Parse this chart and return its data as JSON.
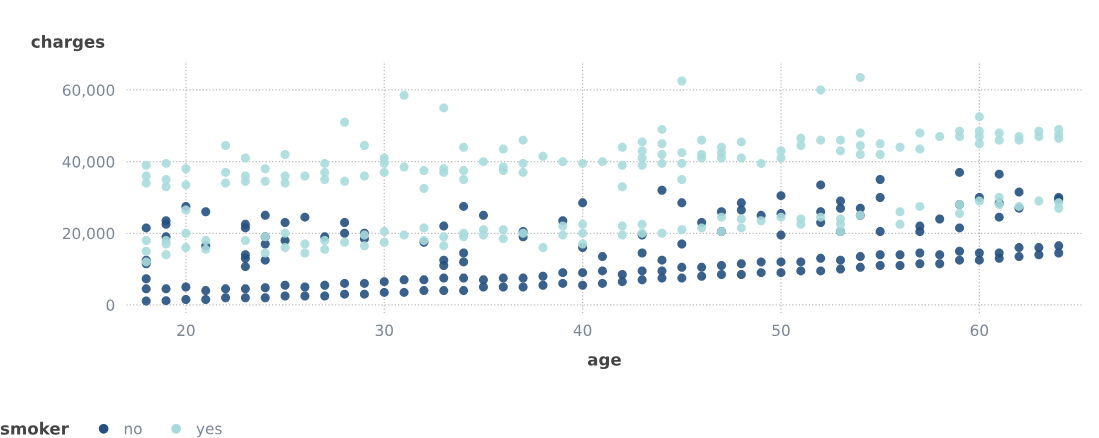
{
  "chart_data": {
    "type": "scatter",
    "xlabel": "age",
    "ylabel": "charges",
    "legend_title": "smoker",
    "legend": "bottom",
    "grid": true,
    "marker": "circle",
    "xlim": [
      17,
      65.2
    ],
    "ylim": [
      -2300,
      68000
    ],
    "xticks": [
      20,
      30,
      40,
      50,
      60
    ],
    "yticks": [
      {
        "value": 0,
        "label": "0"
      },
      {
        "value": 20000,
        "label": "20,000"
      },
      {
        "value": 40000,
        "label": "40,000"
      },
      {
        "value": 60000,
        "label": "60,000"
      }
    ],
    "series": [
      {
        "name": "no",
        "color": "#23507e",
        "x": [
          18,
          18,
          18,
          18,
          18,
          18,
          19,
          19,
          19,
          19,
          19,
          20,
          20,
          20,
          21,
          21,
          21,
          21,
          22,
          22,
          23,
          23,
          23,
          23,
          23,
          23,
          23,
          24,
          24,
          24,
          24,
          24,
          24,
          25,
          25,
          25,
          25,
          26,
          26,
          26,
          27,
          27,
          27,
          28,
          28,
          28,
          28,
          29,
          29,
          29,
          29,
          30,
          30,
          31,
          31,
          32,
          32,
          32,
          33,
          33,
          33,
          33,
          33,
          34,
          34,
          34,
          34,
          34,
          35,
          35,
          35,
          36,
          36,
          37,
          37,
          37,
          37,
          38,
          38,
          39,
          39,
          39,
          40,
          40,
          40,
          40,
          41,
          41,
          41,
          42,
          42,
          43,
          43,
          43,
          43,
          44,
          44,
          44,
          44,
          45,
          45,
          45,
          45,
          46,
          46,
          46,
          47,
          47,
          47,
          47,
          48,
          48,
          48,
          48,
          49,
          49,
          49,
          50,
          50,
          50,
          50,
          50,
          51,
          51,
          52,
          52,
          52,
          52,
          52,
          53,
          53,
          53,
          53,
          53,
          54,
          54,
          54,
          54,
          55,
          55,
          55,
          55,
          55,
          56,
          56,
          57,
          57,
          57,
          57,
          58,
          58,
          58,
          59,
          59,
          59,
          59,
          59,
          60,
          60,
          60,
          61,
          61,
          61,
          61,
          61,
          62,
          62,
          62,
          62,
          63,
          63,
          64,
          64,
          64,
          64
        ],
        "values": [
          1100,
          4500,
          7300,
          11500,
          12500,
          21500,
          1200,
          4500,
          19000,
          22500,
          23500,
          1500,
          5000,
          27500,
          1500,
          4000,
          16500,
          26000,
          2000,
          4500,
          2000,
          4500,
          10700,
          13000,
          14000,
          21500,
          22500,
          2000,
          4800,
          12500,
          17000,
          19000,
          25000,
          2500,
          5500,
          18000,
          23000,
          2500,
          5000,
          24500,
          2500,
          5500,
          19000,
          3000,
          6000,
          20000,
          23000,
          3000,
          6000,
          18500,
          20000,
          3500,
          6500,
          3500,
          7000,
          4000,
          7000,
          17500,
          4000,
          7500,
          11000,
          12500,
          22000,
          4000,
          7500,
          12000,
          14500,
          27500,
          5000,
          7000,
          25000,
          5000,
          7500,
          5000,
          7500,
          19000,
          20500,
          5500,
          8000,
          6000,
          9000,
          23500,
          5500,
          9000,
          16000,
          28500,
          6000,
          9500,
          13500,
          6500,
          8500,
          7000,
          9500,
          14500,
          19500,
          7500,
          9500,
          12500,
          32000,
          7500,
          10500,
          17000,
          28500,
          8000,
          10500,
          23000,
          8500,
          11000,
          20500,
          26000,
          8500,
          11500,
          26500,
          28500,
          9000,
          12000,
          25000,
          9000,
          12000,
          19500,
          25500,
          30500,
          9500,
          12000,
          9500,
          13000,
          23000,
          26000,
          33500,
          10000,
          12500,
          20500,
          27000,
          29000,
          10500,
          13500,
          25000,
          27000,
          11000,
          14000,
          20500,
          30000,
          35000,
          11000,
          14000,
          11500,
          14500,
          20500,
          22000,
          11500,
          14000,
          24000,
          12500,
          15000,
          21500,
          28000,
          37000,
          12500,
          14500,
          30000,
          13000,
          14500,
          24500,
          28500,
          36500,
          13500,
          16000,
          27000,
          31500,
          14000,
          16000,
          14500,
          16500,
          29500,
          30000
        ]
      },
      {
        "name": "yes",
        "color": "#a8dadc",
        "x": [
          18,
          18,
          18,
          18,
          18,
          18,
          19,
          19,
          19,
          19,
          19,
          19,
          20,
          20,
          20,
          20,
          20,
          21,
          21,
          22,
          22,
          22,
          23,
          23,
          23,
          23,
          24,
          24,
          24,
          24,
          25,
          25,
          25,
          25,
          25,
          26,
          26,
          26,
          27,
          27,
          27,
          27,
          27,
          28,
          28,
          28,
          29,
          29,
          29,
          29,
          30,
          30,
          30,
          30,
          30,
          31,
          31,
          31,
          32,
          32,
          32,
          32,
          33,
          33,
          33,
          33,
          33,
          34,
          34,
          34,
          34,
          34,
          35,
          35,
          35,
          36,
          36,
          36,
          36,
          36,
          37,
          37,
          37,
          37,
          38,
          38,
          39,
          39,
          39,
          40,
          40,
          40,
          40,
          41,
          42,
          42,
          42,
          42,
          42,
          43,
          43,
          43,
          43,
          43,
          43,
          44,
          44,
          44,
          44,
          44,
          45,
          45,
          45,
          45,
          45,
          46,
          46,
          46,
          46,
          47,
          47,
          47,
          47,
          47,
          48,
          48,
          48,
          48,
          49,
          49,
          50,
          50,
          50,
          51,
          51,
          51,
          51,
          52,
          52,
          52,
          53,
          53,
          53,
          53,
          53,
          54,
          54,
          54,
          54,
          54,
          55,
          55,
          56,
          56,
          56,
          57,
          57,
          57,
          58,
          59,
          59,
          59,
          59,
          60,
          60,
          60,
          60,
          60,
          61,
          61,
          61,
          61,
          62,
          62,
          62,
          63,
          63,
          63,
          64,
          64,
          64,
          64,
          64
        ],
        "values": [
          34000,
          36000,
          39000,
          12000,
          15000,
          18000,
          33000,
          35000,
          39500,
          14000,
          17000,
          18000,
          33500,
          38000,
          26500,
          20000,
          16000,
          15500,
          18000,
          34000,
          37000,
          44500,
          34500,
          36000,
          41000,
          18000,
          34500,
          38000,
          14500,
          19000,
          34000,
          36000,
          42000,
          16000,
          20000,
          36000,
          14500,
          17000,
          35000,
          37000,
          39500,
          15500,
          18000,
          34500,
          51000,
          17500,
          36000,
          44500,
          16500,
          19500,
          37000,
          39500,
          41000,
          17500,
          20500,
          38500,
          58500,
          19500,
          32500,
          37500,
          18000,
          21500,
          37000,
          38000,
          55000,
          16500,
          19000,
          35000,
          37500,
          44000,
          19000,
          20000,
          40000,
          19500,
          21000,
          37500,
          38500,
          43500,
          18500,
          21000,
          37000,
          39500,
          46000,
          20000,
          41500,
          16000,
          40000,
          19500,
          22000,
          39500,
          17000,
          20000,
          22500,
          40000,
          33000,
          39000,
          44000,
          19500,
          22000,
          39000,
          41000,
          43000,
          45500,
          20000,
          22500,
          39500,
          42000,
          45000,
          49000,
          20000,
          35000,
          39500,
          42500,
          62500,
          21000,
          41000,
          42000,
          46000,
          21500,
          41000,
          42500,
          44000,
          20500,
          24500,
          41000,
          45500,
          21500,
          24000,
          39500,
          23500,
          41000,
          43000,
          24500,
          44500,
          46500,
          22500,
          24000,
          46000,
          60000,
          24500,
          43000,
          46000,
          20500,
          22500,
          24000,
          42000,
          44500,
          48000,
          63500,
          25000,
          42000,
          45000,
          44000,
          22500,
          26000,
          43500,
          48000,
          27500,
          47000,
          47000,
          48500,
          25500,
          28000,
          45000,
          47000,
          48500,
          52500,
          29000,
          46000,
          48000,
          28000,
          30000,
          46000,
          47000,
          27500,
          47000,
          48500,
          29000,
          46500,
          47500,
          49000,
          27000,
          28500
        ]
      }
    ]
  }
}
